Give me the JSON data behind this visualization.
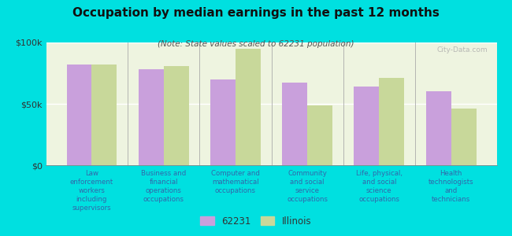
{
  "title": "Occupation by median earnings in the past 12 months",
  "subtitle": "(Note: State values scaled to 62231 population)",
  "categories": [
    "Law\nenforcement\nworkers\nincluding\nsupervisors",
    "Business and\nfinancial\noperations\noccupations",
    "Computer and\nmathematical\noccupations",
    "Community\nand social\nservice\noccupations",
    "Life, physical,\nand social\nscience\noccupations",
    "Health\ntechnologists\nand\ntechnicians"
  ],
  "values_62231": [
    82000,
    78000,
    70000,
    67000,
    64000,
    60000
  ],
  "values_illinois": [
    82000,
    81000,
    95000,
    49000,
    71000,
    46000
  ],
  "color_62231": "#c9a0dc",
  "color_illinois": "#c8d89a",
  "background_outer": "#00e0e0",
  "background_inner": "#eef4e0",
  "ylim": [
    0,
    100000
  ],
  "yticks": [
    0,
    50000,
    100000
  ],
  "ytick_labels": [
    "$0",
    "$50k",
    "$100k"
  ],
  "legend_label_1": "62231",
  "legend_label_2": "Illinois",
  "watermark": "City-Data.com",
  "bar_width": 0.35
}
